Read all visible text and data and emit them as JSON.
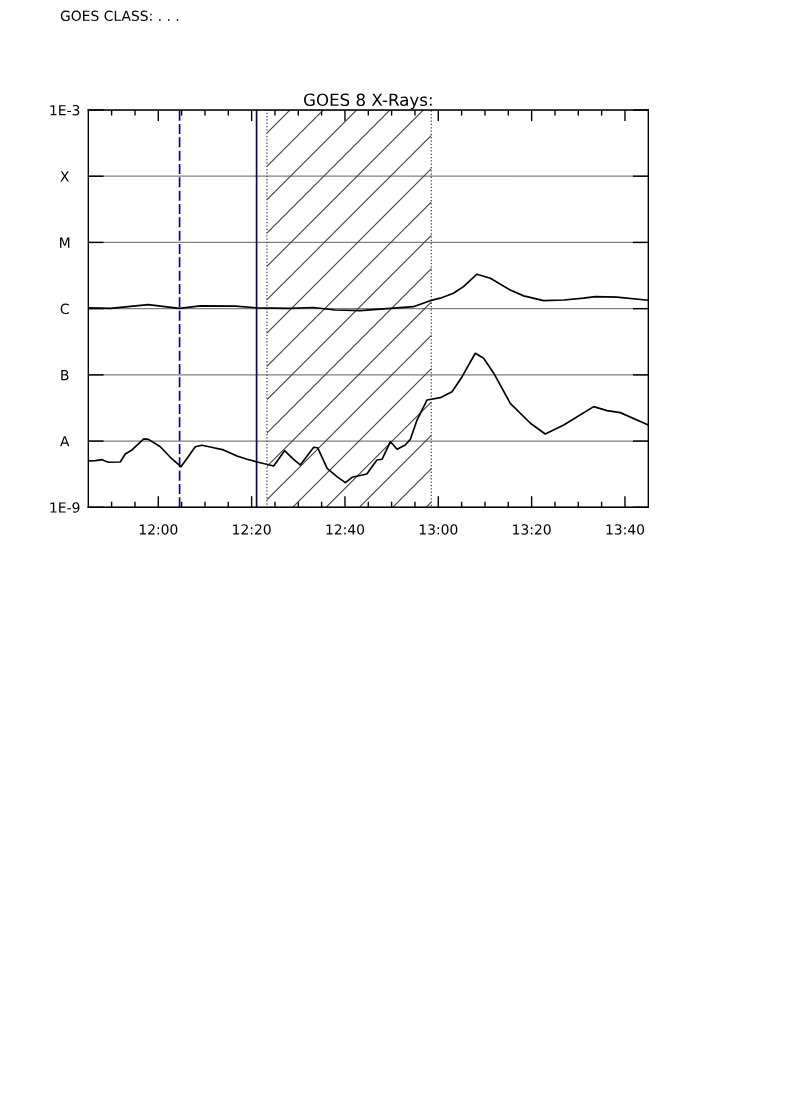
{
  "chart_data": {
    "type": "line",
    "title": "GOES 8 X-Rays:",
    "annotations": [
      "GOES CLASS: . . ."
    ],
    "log": "y",
    "grid": "y",
    "xlim": [
      11.75,
      13.75
    ],
    "xticks": [
      {
        "value": 11.8333,
        "label": null
      },
      {
        "value": 11.9167,
        "label": null
      },
      {
        "value": 12,
        "label": "12:00"
      },
      {
        "value": 12.0833,
        "label": null
      },
      {
        "value": 12.1667,
        "label": null
      },
      {
        "value": 12.25,
        "label": null
      },
      {
        "value": 12.3333,
        "label": "12:20"
      },
      {
        "value": 12.4167,
        "label": null
      },
      {
        "value": 12.5,
        "label": null
      },
      {
        "value": 12.5833,
        "label": null
      },
      {
        "value": 12.6667,
        "label": "12:40"
      },
      {
        "value": 12.75,
        "label": null
      },
      {
        "value": 12.8333,
        "label": null
      },
      {
        "value": 12.9167,
        "label": null
      },
      {
        "value": 13,
        "label": "13:00"
      },
      {
        "value": 13.0833,
        "label": null
      },
      {
        "value": 13.1667,
        "label": null
      },
      {
        "value": 13.25,
        "label": null
      },
      {
        "value": 13.3333,
        "label": "13:20"
      },
      {
        "value": 13.4167,
        "label": null
      },
      {
        "value": 13.5,
        "label": null
      },
      {
        "value": 13.5833,
        "label": null
      },
      {
        "value": 13.6667,
        "label": "13:40"
      }
    ],
    "ylim": [
      1e-09,
      0.001
    ],
    "yticks": [
      {
        "value": 1e-09,
        "label": "1E-9"
      },
      {
        "value": 1e-08,
        "label": "A"
      },
      {
        "value": 1e-07,
        "label": "B"
      },
      {
        "value": 1e-06,
        "label": "C"
      },
      {
        "value": 1e-05,
        "label": "M"
      },
      {
        "value": 0.0001,
        "label": "X"
      },
      {
        "value": 0.001,
        "label": "1E-3"
      }
    ],
    "series": [
      {
        "color": "#000000",
        "x": [
          11.75,
          11.829,
          11.964,
          12.075,
          12.15,
          12.275,
          12.35,
          12.471,
          12.554,
          12.632,
          12.721,
          12.829,
          12.911,
          12.971,
          13.007,
          13.054,
          13.09,
          13.138,
          13.186,
          13.257,
          13.305,
          13.376,
          13.448,
          13.519,
          13.561,
          13.638,
          13.75
        ],
        "values": [
          1.03e-06,
          1.01e-06,
          1.15e-06,
          1.01e-06,
          1.1e-06,
          1.09e-06,
          1.03e-06,
          1.01e-06,
          1.04e-06,
          9.55e-07,
          9.34e-07,
          1.01e-06,
          1.07e-06,
          1.32e-06,
          1.44e-06,
          1.71e-06,
          2.15e-06,
          3.31e-06,
          2.88e-06,
          1.91e-06,
          1.56e-06,
          1.32e-06,
          1.35e-06,
          1.44e-06,
          1.52e-06,
          1.49e-06,
          1.34e-06
        ]
      },
      {
        "color": "#000000",
        "x": [
          11.75,
          11.775,
          11.799,
          11.822,
          11.864,
          11.882,
          11.906,
          11.948,
          11.965,
          12.007,
          12.043,
          12.081,
          12.103,
          12.132,
          12.156,
          12.198,
          12.233,
          12.281,
          12.317,
          12.353,
          12.412,
          12.451,
          12.483,
          12.507,
          12.555,
          12.569,
          12.603,
          12.638,
          12.668,
          12.692,
          12.745,
          12.763,
          12.781,
          12.799,
          12.829,
          12.853,
          12.882,
          12.9,
          12.924,
          12.96,
          13.007,
          13.049,
          13.085,
          13.132,
          13.162,
          13.198,
          13.257,
          13.329,
          13.382,
          13.448,
          13.555,
          13.603,
          13.65,
          13.75
        ],
        "values": [
          5e-09,
          5.06e-09,
          5.24e-09,
          4.79e-09,
          4.83e-09,
          6.38e-09,
          7.35e-09,
          1.08e-08,
          1.06e-08,
          8.22e-09,
          5.69e-09,
          4.1e-09,
          5.49e-09,
          8.22e-09,
          8.65e-09,
          7.94e-09,
          7.35e-09,
          5.96e-09,
          5.31e-09,
          4.83e-09,
          4.21e-09,
          7.16e-09,
          5.31e-09,
          4.36e-09,
          8.06e-09,
          7.94e-09,
          3.88e-09,
          2.9e-09,
          2.36e-09,
          2.84e-09,
          3.18e-09,
          4.1e-09,
          5.18e-09,
          5.31e-09,
          9.79e-09,
          7.52e-09,
          8.73e-09,
          1.06e-08,
          2.08e-08,
          4.18e-08,
          4.53e-08,
          5.57e-08,
          9.39e-08,
          2.12e-07,
          1.78e-07,
          1.06e-07,
          3.72e-08,
          1.86e-08,
          1.28e-08,
          1.75e-08,
          3.31e-08,
          2.88e-08,
          2.69e-08,
          1.75e-08
        ]
      }
    ],
    "ref_lines": [
      {
        "axis": "x",
        "value": 12.076,
        "color": "#000080",
        "line_style": "dashed"
      },
      {
        "axis": "x",
        "value": 12.351,
        "color": "#000080",
        "line_style": "solid"
      }
    ],
    "bands": [
      {
        "axis": "x",
        "from": 12.388,
        "to": 12.975,
        "color": "#404040"
      }
    ]
  }
}
